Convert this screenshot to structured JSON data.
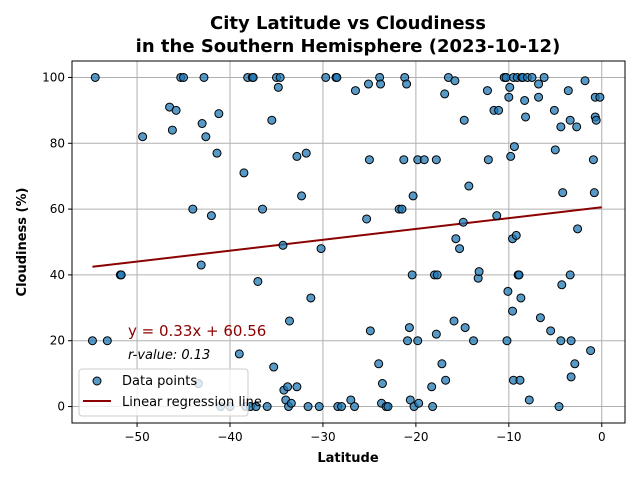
{
  "chart_data": {
    "type": "scatter",
    "title_line1": "City Latitude vs Cloudiness",
    "title_line2": "in the Southern Hemisphere (2023-10-12)",
    "xlabel": "Latitude",
    "ylabel": "Cloudiness (%)",
    "xlim": [
      -57,
      2.5
    ],
    "ylim": [
      -5,
      105
    ],
    "xticks": [
      -50,
      -40,
      -30,
      -20,
      -10,
      0
    ],
    "yticks": [
      0,
      20,
      40,
      60,
      80,
      100
    ],
    "grid": true,
    "legend_position": "lower-left",
    "equation_text": "y = 0.33x + 60.56",
    "rvalue_text": "r-value: 0.13",
    "regression": {
      "slope": 0.33,
      "intercept": 60.56,
      "x_start": -54.8,
      "x_end": 0
    },
    "colors": {
      "point_fill": "#1f77b4",
      "point_edge": "#000000",
      "line": "#8b0000",
      "equation": "#8b0000"
    },
    "series": [
      {
        "name": "Data points",
        "kind": "points"
      },
      {
        "name": "Linear regression line",
        "kind": "line"
      }
    ],
    "points": [
      [
        -54.5,
        100
      ],
      [
        -54.8,
        20
      ],
      [
        -53.2,
        20
      ],
      [
        -51.8,
        40
      ],
      [
        -51.7,
        40
      ],
      [
        -49.4,
        82
      ],
      [
        -46.5,
        91
      ],
      [
        -46.2,
        84
      ],
      [
        -45.8,
        90
      ],
      [
        -45.3,
        100
      ],
      [
        -45.0,
        100
      ],
      [
        -44.0,
        60
      ],
      [
        -43.4,
        7
      ],
      [
        -43.1,
        43
      ],
      [
        -43.0,
        86
      ],
      [
        -42.8,
        100
      ],
      [
        -42.6,
        82
      ],
      [
        -42.0,
        58
      ],
      [
        -41.4,
        77
      ],
      [
        -41.2,
        89
      ],
      [
        -41.0,
        0
      ],
      [
        -40.0,
        0
      ],
      [
        -39.0,
        16
      ],
      [
        -38.5,
        71
      ],
      [
        -38.3,
        0
      ],
      [
        -38.1,
        100
      ],
      [
        -37.8,
        0
      ],
      [
        -37.6,
        100
      ],
      [
        -37.5,
        100
      ],
      [
        -37.2,
        0
      ],
      [
        -37.0,
        38
      ],
      [
        -36.5,
        60
      ],
      [
        -36.0,
        0
      ],
      [
        -35.5,
        87
      ],
      [
        -35.3,
        12
      ],
      [
        -35.0,
        100
      ],
      [
        -34.8,
        97
      ],
      [
        -34.6,
        100
      ],
      [
        -34.3,
        49
      ],
      [
        -34.2,
        5
      ],
      [
        -34.0,
        2
      ],
      [
        -33.8,
        6
      ],
      [
        -33.7,
        0
      ],
      [
        -33.6,
        26
      ],
      [
        -33.4,
        1
      ],
      [
        -32.8,
        6
      ],
      [
        -32.8,
        76
      ],
      [
        -32.3,
        64
      ],
      [
        -31.8,
        77
      ],
      [
        -31.6,
        0
      ],
      [
        -31.3,
        33
      ],
      [
        -30.4,
        0
      ],
      [
        -30.2,
        48
      ],
      [
        -29.7,
        100
      ],
      [
        -28.6,
        100
      ],
      [
        -28.5,
        100
      ],
      [
        -28.4,
        0
      ],
      [
        -28.0,
        0
      ],
      [
        -27.0,
        2
      ],
      [
        -26.6,
        0
      ],
      [
        -26.5,
        96
      ],
      [
        -25.3,
        57
      ],
      [
        -25.1,
        98
      ],
      [
        -25.0,
        75
      ],
      [
        -24.9,
        23
      ],
      [
        -24.0,
        13
      ],
      [
        -23.9,
        100
      ],
      [
        -23.8,
        98
      ],
      [
        -23.6,
        7
      ],
      [
        -23.7,
        1
      ],
      [
        -23.2,
        0
      ],
      [
        -23.0,
        0
      ],
      [
        -21.8,
        60
      ],
      [
        -21.5,
        60
      ],
      [
        -21.3,
        75
      ],
      [
        -21.2,
        100
      ],
      [
        -21.0,
        98
      ],
      [
        -20.9,
        20
      ],
      [
        -20.7,
        24
      ],
      [
        -20.6,
        2
      ],
      [
        -20.4,
        40
      ],
      [
        -20.3,
        64
      ],
      [
        -20.2,
        0
      ],
      [
        -19.8,
        20
      ],
      [
        -19.7,
        1
      ],
      [
        -19.8,
        75
      ],
      [
        -19.1,
        75
      ],
      [
        -18.3,
        6
      ],
      [
        -18.2,
        0
      ],
      [
        -18.0,
        40
      ],
      [
        -17.8,
        22
      ],
      [
        -17.8,
        75
      ],
      [
        -17.7,
        40
      ],
      [
        -17.2,
        13
      ],
      [
        -16.9,
        95
      ],
      [
        -16.8,
        8
      ],
      [
        -16.5,
        100
      ],
      [
        -15.9,
        26
      ],
      [
        -15.8,
        99
      ],
      [
        -15.7,
        51
      ],
      [
        -15.3,
        48
      ],
      [
        -14.9,
        56
      ],
      [
        -14.8,
        87
      ],
      [
        -14.7,
        24
      ],
      [
        -14.3,
        67
      ],
      [
        -13.8,
        20
      ],
      [
        -13.3,
        39
      ],
      [
        -13.2,
        41
      ],
      [
        -12.3,
        96
      ],
      [
        -12.2,
        75
      ],
      [
        -11.6,
        90
      ],
      [
        -11.3,
        58
      ],
      [
        -11.1,
        90
      ],
      [
        -10.5,
        100
      ],
      [
        -10.3,
        100
      ],
      [
        -10.1,
        35
      ],
      [
        -10.2,
        20
      ],
      [
        -10.0,
        94
      ],
      [
        -9.9,
        97
      ],
      [
        -9.8,
        76
      ],
      [
        -9.6,
        51
      ],
      [
        -9.6,
        29
      ],
      [
        -9.5,
        100
      ],
      [
        -9.5,
        8
      ],
      [
        -9.4,
        79
      ],
      [
        -9.2,
        52
      ],
      [
        -9.1,
        100
      ],
      [
        -9.0,
        40
      ],
      [
        -8.9,
        40
      ],
      [
        -8.7,
        33
      ],
      [
        -8.8,
        8
      ],
      [
        -8.6,
        100
      ],
      [
        -8.5,
        100
      ],
      [
        -8.3,
        93
      ],
      [
        -8.2,
        88
      ],
      [
        -8.0,
        100
      ],
      [
        -7.8,
        2
      ],
      [
        -7.5,
        100
      ],
      [
        -6.8,
        94
      ],
      [
        -6.8,
        98
      ],
      [
        -6.6,
        27
      ],
      [
        -6.2,
        100
      ],
      [
        -5.5,
        23
      ],
      [
        -5.1,
        90
      ],
      [
        -5.0,
        78
      ],
      [
        -4.6,
        0
      ],
      [
        -4.4,
        20
      ],
      [
        -4.4,
        85
      ],
      [
        -4.3,
        37
      ],
      [
        -4.2,
        65
      ],
      [
        -3.6,
        96
      ],
      [
        -3.4,
        87
      ],
      [
        -3.4,
        40
      ],
      [
        -3.3,
        9
      ],
      [
        -3.3,
        20
      ],
      [
        -2.9,
        13
      ],
      [
        -2.7,
        85
      ],
      [
        -2.6,
        54
      ],
      [
        -1.8,
        99
      ],
      [
        -1.2,
        17
      ],
      [
        -0.9,
        75
      ],
      [
        -0.8,
        65
      ],
      [
        -0.7,
        94
      ],
      [
        -0.7,
        88
      ],
      [
        -0.6,
        87
      ],
      [
        -0.2,
        94
      ]
    ]
  }
}
